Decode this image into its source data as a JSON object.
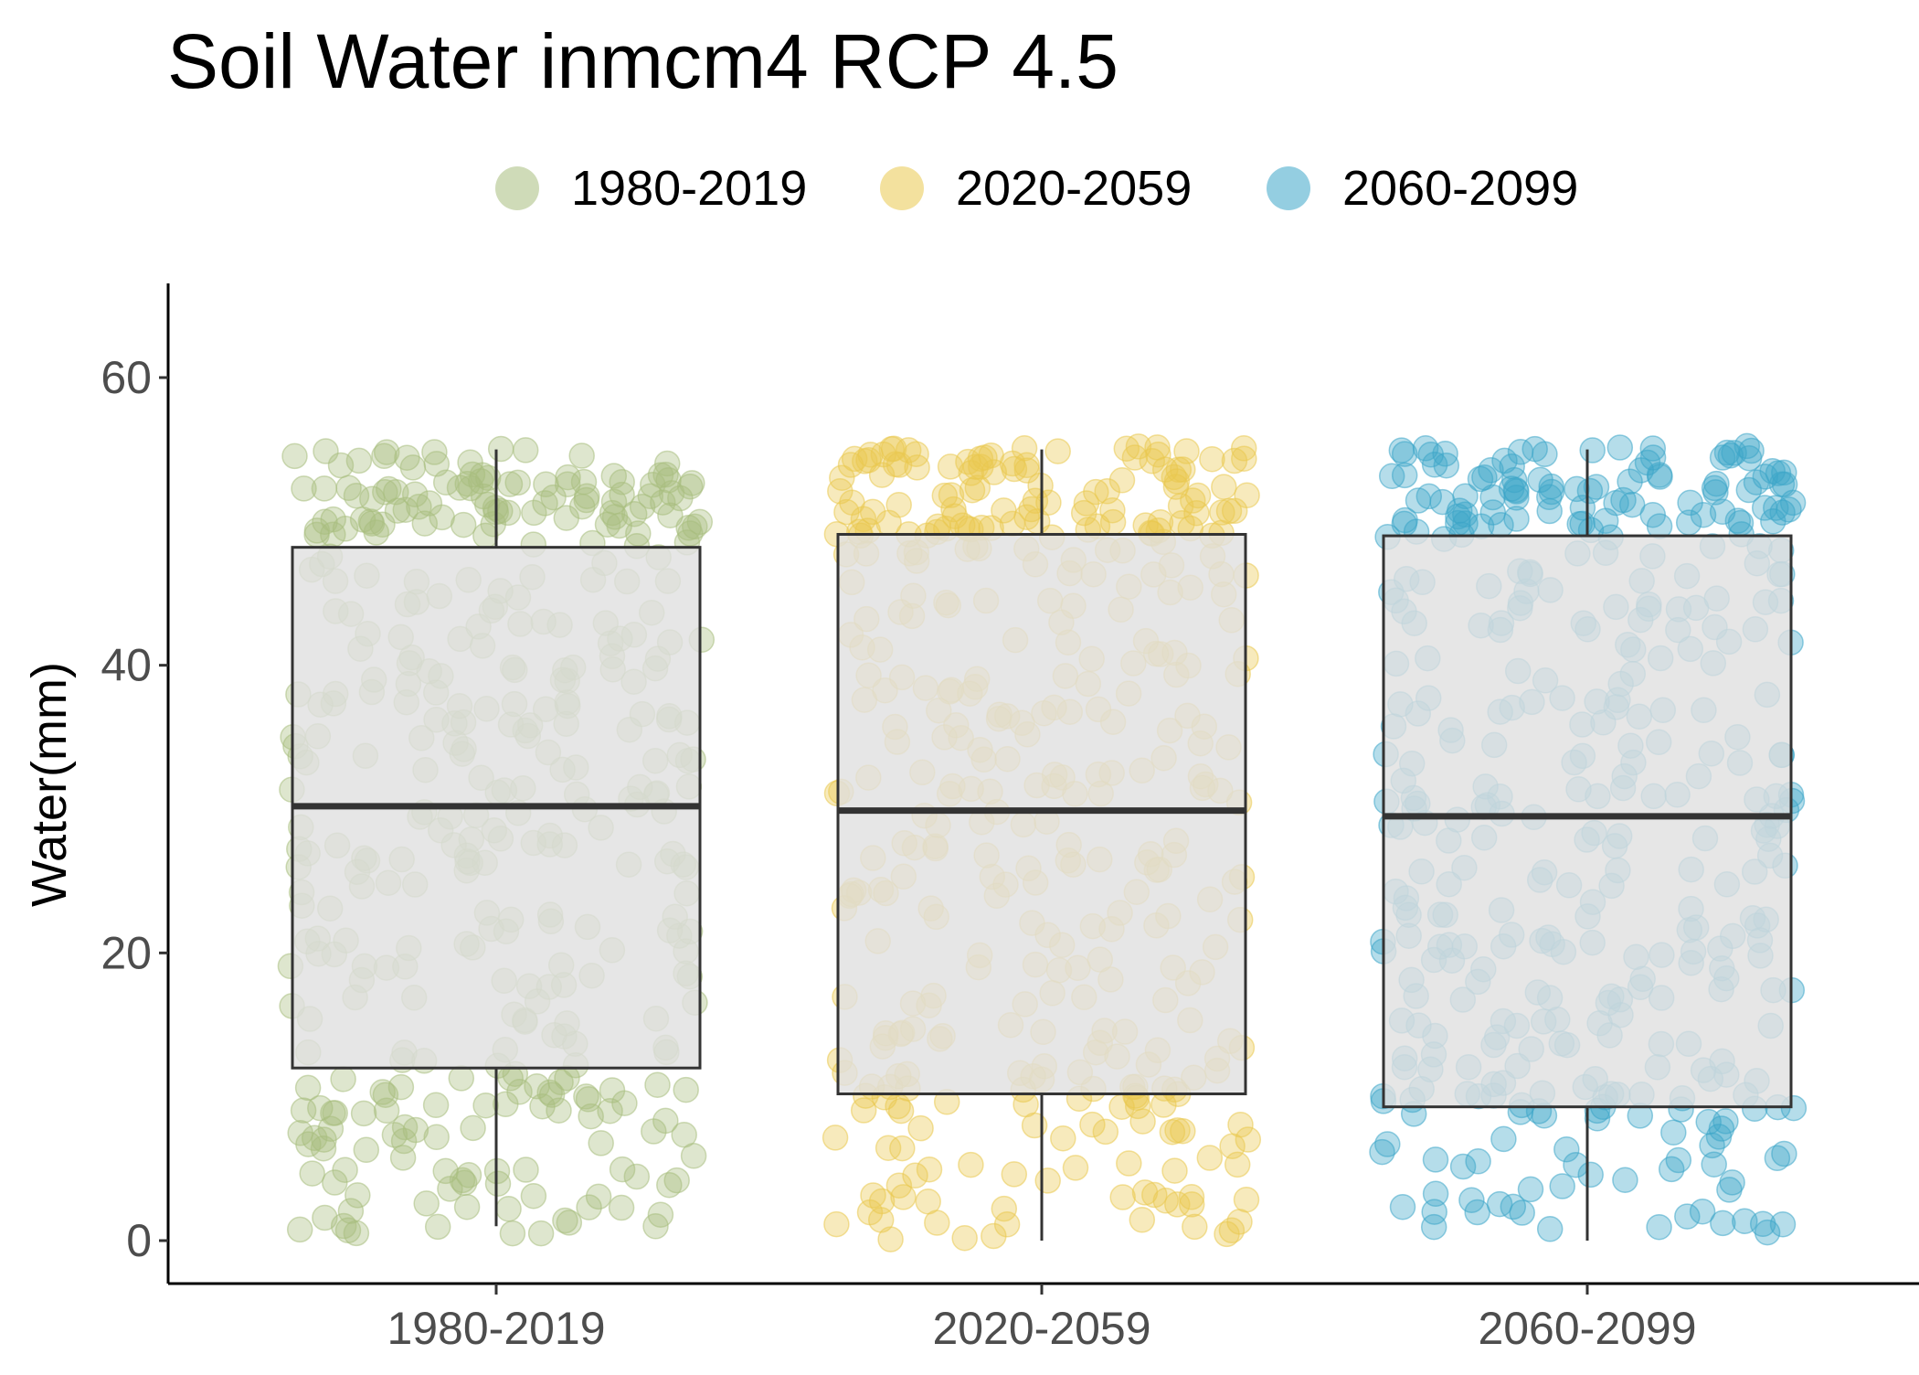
{
  "chart_data": {
    "type": "boxplot",
    "title": "Soil Water inmcm4 RCP 4.5",
    "xlabel": "",
    "ylabel": "Water(mm)",
    "ylim": [
      -3,
      66
    ],
    "yticks": [
      0,
      20,
      40,
      60
    ],
    "categories": [
      "1980-2019",
      "2020-2059",
      "2060-2099"
    ],
    "legend": {
      "position": "top",
      "entries": [
        "1980-2019",
        "2020-2059",
        "2060-2099"
      ]
    },
    "grid": false,
    "boxes": [
      {
        "category": "1980-2019",
        "whisker_low": 1,
        "q1": 12,
        "median": 30.2,
        "q3": 48.2,
        "whisker_high": 55
      },
      {
        "category": "2020-2059",
        "whisker_low": 0,
        "q1": 10.2,
        "median": 29.9,
        "q3": 49.1,
        "whisker_high": 55
      },
      {
        "category": "2060-2099",
        "whisker_low": 0,
        "q1": 9.3,
        "median": 29.5,
        "q3": 49.0,
        "whisker_high": 55
      }
    ],
    "series": [
      {
        "name": "1980-2019",
        "color": "#a8bd7e",
        "range": [
          0.5,
          55.3
        ]
      },
      {
        "name": "2020-2059",
        "color": "#eac94e",
        "range": [
          0,
          55.3
        ]
      },
      {
        "name": "2060-2099",
        "color": "#3da5c9",
        "range": [
          0,
          55.3
        ]
      }
    ],
    "box_fill": "#e0e0e0",
    "box_stroke": "#333333"
  }
}
